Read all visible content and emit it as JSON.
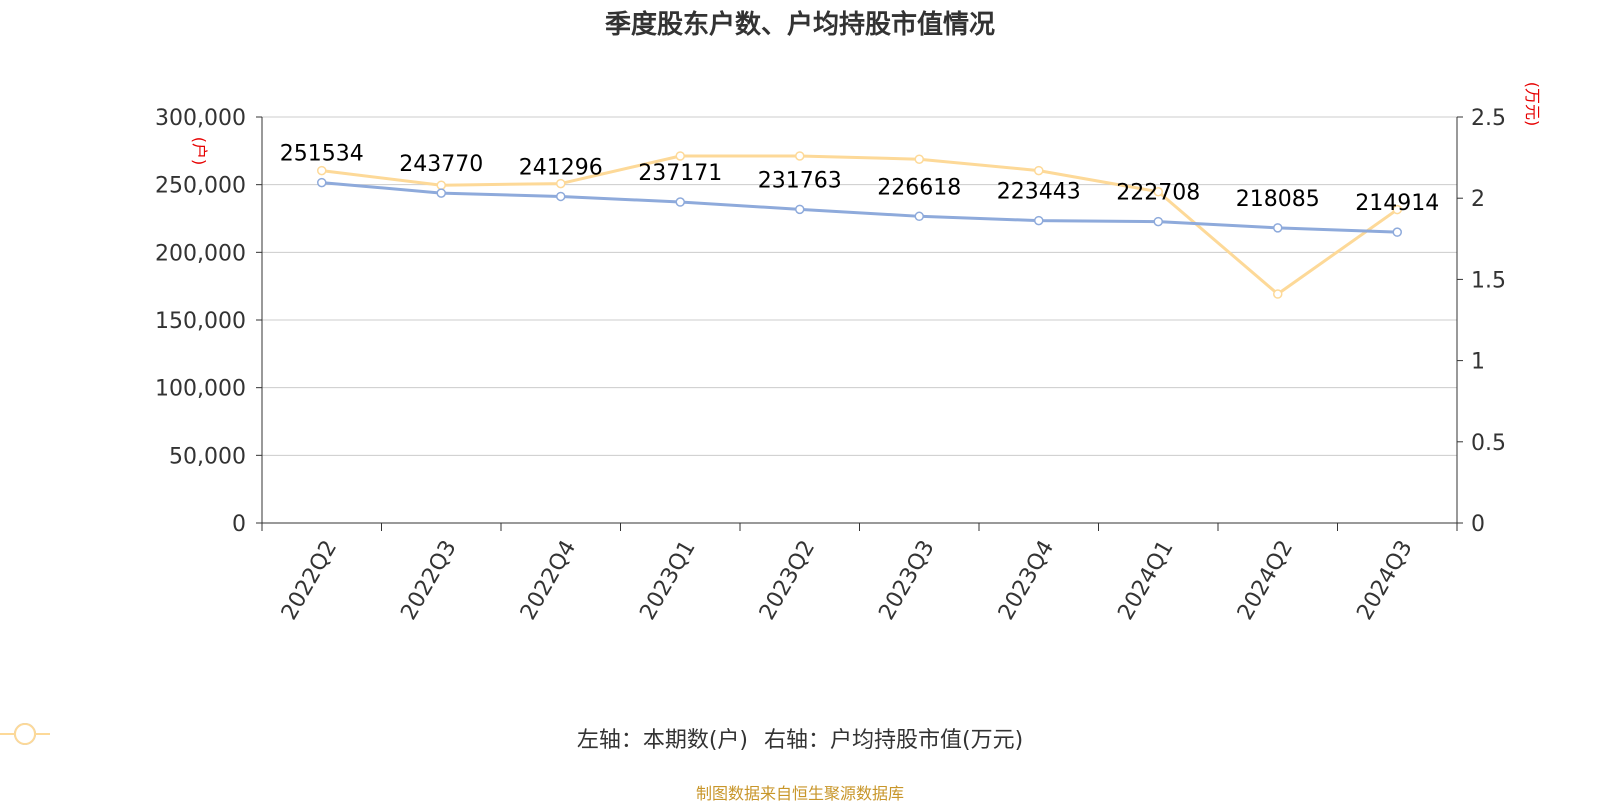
{
  "title": "季度股东户数、户均持股市值情况",
  "source": "制图数据来自恒生聚源数据库",
  "colors": {
    "left_series": "#8eaadb",
    "right_series": "#fdd998",
    "unit": "#e60000",
    "grid": "#cccccc",
    "axis": "#333333"
  },
  "chart_data": {
    "type": "line",
    "categories": [
      "2022Q2",
      "2022Q3",
      "2022Q4",
      "2023Q1",
      "2023Q2",
      "2023Q3",
      "2023Q4",
      "2024Q1",
      "2024Q2",
      "2024Q3"
    ],
    "left_axis": {
      "unit": "(户)",
      "ylim": [
        0,
        300000
      ],
      "ticks": [
        "0",
        "50,000",
        "100,000",
        "150,000",
        "200,000",
        "250,000",
        "300,000"
      ]
    },
    "right_axis": {
      "unit": "(万元)",
      "ylim": [
        0,
        2.5
      ],
      "ticks": [
        "0",
        "0.5",
        "1",
        "1.5",
        "2",
        "2.5"
      ]
    },
    "series": [
      {
        "name": "左轴：本期数(户)",
        "axis": "left",
        "values": [
          251534,
          243770,
          241296,
          237171,
          231763,
          226618,
          223443,
          222708,
          218085,
          214914
        ],
        "labels": [
          "251534",
          "243770",
          "241296",
          "237171",
          "231763",
          "226618",
          "223443",
          "222708",
          "218085",
          "214914"
        ]
      },
      {
        "name": "右轴：户均持股市值(万元)",
        "axis": "right",
        "values": [
          2.17,
          2.08,
          2.09,
          2.26,
          2.26,
          2.24,
          2.17,
          2.04,
          1.41,
          1.93
        ]
      }
    ],
    "grid": true,
    "legend": "bottom"
  }
}
